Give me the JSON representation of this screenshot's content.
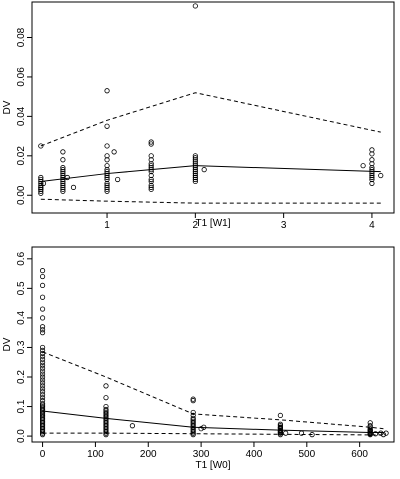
{
  "chart_data": [
    {
      "type": "scatter",
      "xlabel": "T1  [W1]",
      "ylabel": "DV",
      "xlim": [
        0.15,
        4.25
      ],
      "ylim": [
        -0.009,
        0.098
      ],
      "xticks": [
        1,
        2,
        3,
        4
      ],
      "yticks": [
        0,
        0.02,
        0.04,
        0.06,
        0.08
      ],
      "xtick_labels": [
        "1",
        "2",
        "3",
        "4"
      ],
      "ytick_labels": [
        "0.00",
        "0.02",
        "0.04",
        "0.06",
        "0.08"
      ],
      "points": {
        "x": [
          0.25,
          0.25,
          0.25,
          0.25,
          0.25,
          0.25,
          0.25,
          0.25,
          0.25,
          0.25,
          0.25,
          0.25,
          0.5,
          0.5,
          0.5,
          0.5,
          0.5,
          0.5,
          0.5,
          0.5,
          0.5,
          0.5,
          0.5,
          0.5,
          0.5,
          0.5,
          0.5,
          1,
          1,
          1,
          1,
          1,
          1,
          1,
          1,
          1,
          1,
          1,
          1,
          1,
          1,
          1,
          1,
          1,
          1.5,
          1.5,
          1.5,
          1.5,
          1.5,
          1.5,
          1.5,
          1.5,
          1.5,
          1.5,
          1.5,
          1.5,
          1.5,
          1.5,
          1.5,
          2,
          2,
          2,
          2,
          2,
          2,
          2,
          2,
          2,
          2,
          2,
          2,
          2,
          2,
          2,
          4,
          4,
          4,
          4,
          4,
          4,
          4,
          4,
          4,
          4,
          4,
          4,
          0.28,
          0.55,
          1.08,
          1.12,
          2.1,
          3.9,
          4.1,
          0.62
        ],
        "y": [
          0.025,
          0.008,
          0.006,
          0.005,
          0.004,
          0.003,
          0.002,
          0.001,
          0.007,
          0.009,
          0.003,
          0.004,
          0.022,
          0.018,
          0.014,
          0.012,
          0.01,
          0.009,
          0.008,
          0.007,
          0.006,
          0.005,
          0.004,
          0.003,
          0.002,
          0.011,
          0.013,
          0.053,
          0.035,
          0.025,
          0.02,
          0.018,
          0.015,
          0.013,
          0.012,
          0.011,
          0.01,
          0.009,
          0.008,
          0.006,
          0.005,
          0.004,
          0.003,
          0.002,
          0.027,
          0.026,
          0.02,
          0.018,
          0.016,
          0.015,
          0.014,
          0.013,
          0.012,
          0.01,
          0.008,
          0.007,
          0.005,
          0.004,
          0.003,
          0.096,
          0.02,
          0.019,
          0.018,
          0.017,
          0.016,
          0.015,
          0.014,
          0.013,
          0.012,
          0.011,
          0.01,
          0.009,
          0.008,
          0.007,
          0.023,
          0.021,
          0.018,
          0.016,
          0.014,
          0.013,
          0.012,
          0.011,
          0.01,
          0.009,
          0.008,
          0.006,
          0.006,
          0.009,
          0.022,
          0.008,
          0.013,
          0.015,
          0.01,
          0.004
        ]
      },
      "lines": [
        {
          "style": "dashed",
          "x": [
            0.25,
            1,
            2,
            4.1
          ],
          "y": [
            0.025,
            0.038,
            0.052,
            0.032
          ]
        },
        {
          "style": "solid",
          "x": [
            0.25,
            1,
            2,
            4.1
          ],
          "y": [
            0.007,
            0.011,
            0.015,
            0.012
          ]
        },
        {
          "style": "dashed",
          "x": [
            0.25,
            1,
            2,
            4.1
          ],
          "y": [
            -0.002,
            -0.003,
            -0.004,
            -0.004
          ]
        }
      ]
    },
    {
      "type": "scatter",
      "xlabel": "T1  [W0]",
      "ylabel": "DV",
      "xlim": [
        -20,
        665
      ],
      "ylim": [
        -0.02,
        0.64
      ],
      "xticks": [
        0,
        100,
        200,
        300,
        400,
        500,
        600
      ],
      "yticks": [
        0,
        0.1,
        0.2,
        0.3,
        0.4,
        0.5,
        0.6
      ],
      "xtick_labels": [
        "0",
        "100",
        "200",
        "300",
        "400",
        "500",
        "600"
      ],
      "ytick_labels": [
        "0.0",
        "0.1",
        "0.2",
        "0.3",
        "0.4",
        "0.5",
        "0.6"
      ],
      "points": {
        "x": [
          0,
          0,
          0,
          0,
          0,
          0,
          0,
          0,
          0,
          0,
          0,
          0,
          0,
          0,
          0,
          0,
          0,
          0,
          0,
          0,
          0,
          0,
          0,
          0,
          0,
          0,
          0,
          0,
          0,
          0,
          0,
          0,
          0,
          0,
          0,
          0,
          0,
          0,
          0,
          0,
          0,
          0,
          0,
          0,
          0,
          0,
          0,
          0,
          0,
          0,
          120,
          120,
          120,
          120,
          120,
          120,
          120,
          120,
          120,
          120,
          120,
          120,
          120,
          120,
          120,
          120,
          120,
          120,
          120,
          120,
          120,
          285,
          285,
          285,
          285,
          285,
          285,
          285,
          285,
          285,
          285,
          285,
          285,
          285,
          285,
          285,
          285,
          450,
          450,
          450,
          450,
          450,
          450,
          450,
          450,
          450,
          450,
          450,
          450,
          620,
          620,
          620,
          620,
          620,
          620,
          620,
          620,
          620,
          620,
          620,
          620,
          170,
          300,
          305,
          460,
          490,
          510,
          640,
          645,
          650,
          630
        ],
        "y": [
          0.56,
          0.54,
          0.51,
          0.47,
          0.43,
          0.4,
          0.37,
          0.36,
          0.35,
          0.3,
          0.29,
          0.28,
          0.27,
          0.26,
          0.25,
          0.24,
          0.23,
          0.22,
          0.21,
          0.2,
          0.19,
          0.18,
          0.17,
          0.16,
          0.15,
          0.14,
          0.13,
          0.12,
          0.11,
          0.1,
          0.09,
          0.08,
          0.07,
          0.06,
          0.05,
          0.04,
          0.03,
          0.02,
          0.01,
          0.005,
          0.015,
          0.025,
          0.035,
          0.045,
          0.055,
          0.065,
          0.075,
          0.085,
          0.095,
          0.105,
          0.17,
          0.13,
          0.1,
          0.09,
          0.08,
          0.075,
          0.07,
          0.065,
          0.06,
          0.055,
          0.05,
          0.045,
          0.04,
          0.035,
          0.03,
          0.025,
          0.02,
          0.015,
          0.01,
          0.005,
          0.085,
          0.125,
          0.12,
          0.08,
          0.07,
          0.06,
          0.05,
          0.045,
          0.04,
          0.035,
          0.03,
          0.025,
          0.02,
          0.015,
          0.01,
          0.005,
          0.055,
          0.07,
          0.04,
          0.035,
          0.03,
          0.025,
          0.02,
          0.015,
          0.01,
          0.005,
          0.028,
          0.018,
          0.012,
          0.045,
          0.035,
          0.03,
          0.025,
          0.02,
          0.015,
          0.01,
          0.005,
          0.012,
          0.008,
          0.02,
          0.018,
          0.035,
          0.025,
          0.03,
          0.01,
          0.01,
          0.005,
          0.01,
          0.005,
          0.01,
          0.008
        ]
      },
      "lines": [
        {
          "style": "dashed",
          "x": [
            0,
            120,
            285,
            450,
            620,
            645
          ],
          "y": [
            0.285,
            0.2,
            0.075,
            0.055,
            0.03,
            0.025
          ]
        },
        {
          "style": "solid",
          "x": [
            0,
            120,
            285,
            450,
            620,
            645
          ],
          "y": [
            0.085,
            0.06,
            0.03,
            0.02,
            0.012,
            0.012
          ]
        },
        {
          "style": "dashed",
          "x": [
            0,
            120,
            285,
            450,
            620,
            645
          ],
          "y": [
            0.01,
            0.01,
            0.008,
            0.006,
            0.004,
            0.004
          ]
        }
      ]
    }
  ]
}
